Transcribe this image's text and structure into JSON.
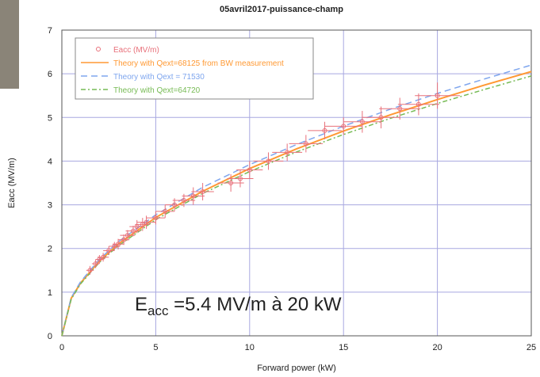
{
  "chart_data": {
    "type": "scatter",
    "title": "05avril2017-puissance-champ",
    "x_label": "Forward power (kW)",
    "y_label": "Eacc (MV/m)",
    "xlim": [
      0,
      25
    ],
    "ylim": [
      0,
      7
    ],
    "xticks": [
      0,
      5,
      10,
      15,
      20,
      25
    ],
    "yticks": [
      0,
      1,
      2,
      3,
      4,
      5,
      6,
      7
    ],
    "grid": true,
    "legend": "upper left",
    "series": [
      {
        "name": "Eacc (MV/m)",
        "color": "#e8707a",
        "type": "scatter",
        "x": [
          1.5,
          1.8,
          2,
          2.2,
          2.5,
          2.8,
          3,
          3.3,
          3.5,
          3.8,
          4,
          4.3,
          4.5,
          5,
          5.5,
          6,
          6.5,
          7,
          7.5,
          9,
          9.5,
          10,
          11,
          12,
          13,
          14,
          15,
          16,
          17,
          18,
          19,
          20
        ],
        "values": [
          1.5,
          1.65,
          1.75,
          1.8,
          1.95,
          2.05,
          2.1,
          2.2,
          2.3,
          2.4,
          2.5,
          2.55,
          2.6,
          2.7,
          2.85,
          3.0,
          3.1,
          3.2,
          3.3,
          3.5,
          3.6,
          3.8,
          4.0,
          4.2,
          4.4,
          4.7,
          4.8,
          4.9,
          5.0,
          5.2,
          5.3,
          5.5
        ],
        "xerr": [
          0.2,
          0.2,
          0.2,
          0.3,
          0.3,
          0.3,
          0.3,
          0.3,
          0.4,
          0.4,
          0.4,
          0.4,
          0.5,
          0.5,
          0.5,
          0.5,
          0.6,
          0.6,
          0.6,
          0.7,
          0.7,
          0.7,
          0.8,
          0.8,
          0.9,
          0.9,
          1.0,
          1.0,
          1.0,
          1.1,
          1.1,
          1.2
        ],
        "yerr": [
          0.1,
          0.1,
          0.1,
          0.1,
          0.1,
          0.1,
          0.12,
          0.12,
          0.12,
          0.12,
          0.15,
          0.15,
          0.15,
          0.15,
          0.15,
          0.15,
          0.15,
          0.2,
          0.2,
          0.2,
          0.2,
          0.2,
          0.2,
          0.2,
          0.2,
          0.2,
          0.2,
          0.25,
          0.25,
          0.25,
          0.25,
          0.3
        ]
      },
      {
        "name": "Theory with Qext=68125 from BW measurement",
        "color": "#ff9933",
        "type": "line",
        "dash": "none",
        "x": [
          0,
          0.5,
          1,
          2,
          3,
          5,
          7.5,
          10,
          12.5,
          15,
          17.5,
          20,
          22.5,
          25
        ],
        "values": [
          0,
          0.86,
          1.21,
          1.71,
          2.1,
          2.71,
          3.31,
          3.83,
          4.28,
          4.69,
          5.06,
          5.41,
          5.74,
          6.05
        ]
      },
      {
        "name": "Theory with Qext = 71530",
        "color": "#7fa6ee",
        "type": "line",
        "dash": "8 5",
        "x": [
          0,
          0.5,
          1,
          2,
          3,
          5,
          7.5,
          10,
          12.5,
          15,
          17.5,
          20,
          22.5,
          25
        ],
        "values": [
          0,
          0.88,
          1.24,
          1.75,
          2.15,
          2.77,
          3.4,
          3.92,
          4.38,
          4.8,
          5.19,
          5.55,
          5.88,
          6.2
        ]
      },
      {
        "name": "Theory with Qext=64720",
        "color": "#77bb55",
        "type": "line",
        "dash": "6 3 2 3",
        "x": [
          0,
          0.5,
          1,
          2,
          3,
          5,
          7.5,
          10,
          12.5,
          15,
          17.5,
          20,
          22.5,
          25
        ],
        "values": [
          0,
          0.84,
          1.19,
          1.68,
          2.06,
          2.66,
          3.26,
          3.76,
          4.21,
          4.61,
          4.98,
          5.32,
          5.64,
          5.95
        ]
      }
    ],
    "annotation": {
      "main": "E",
      "sub": "acc",
      "rest": " =5.4 MV/m à 20 kW"
    }
  }
}
